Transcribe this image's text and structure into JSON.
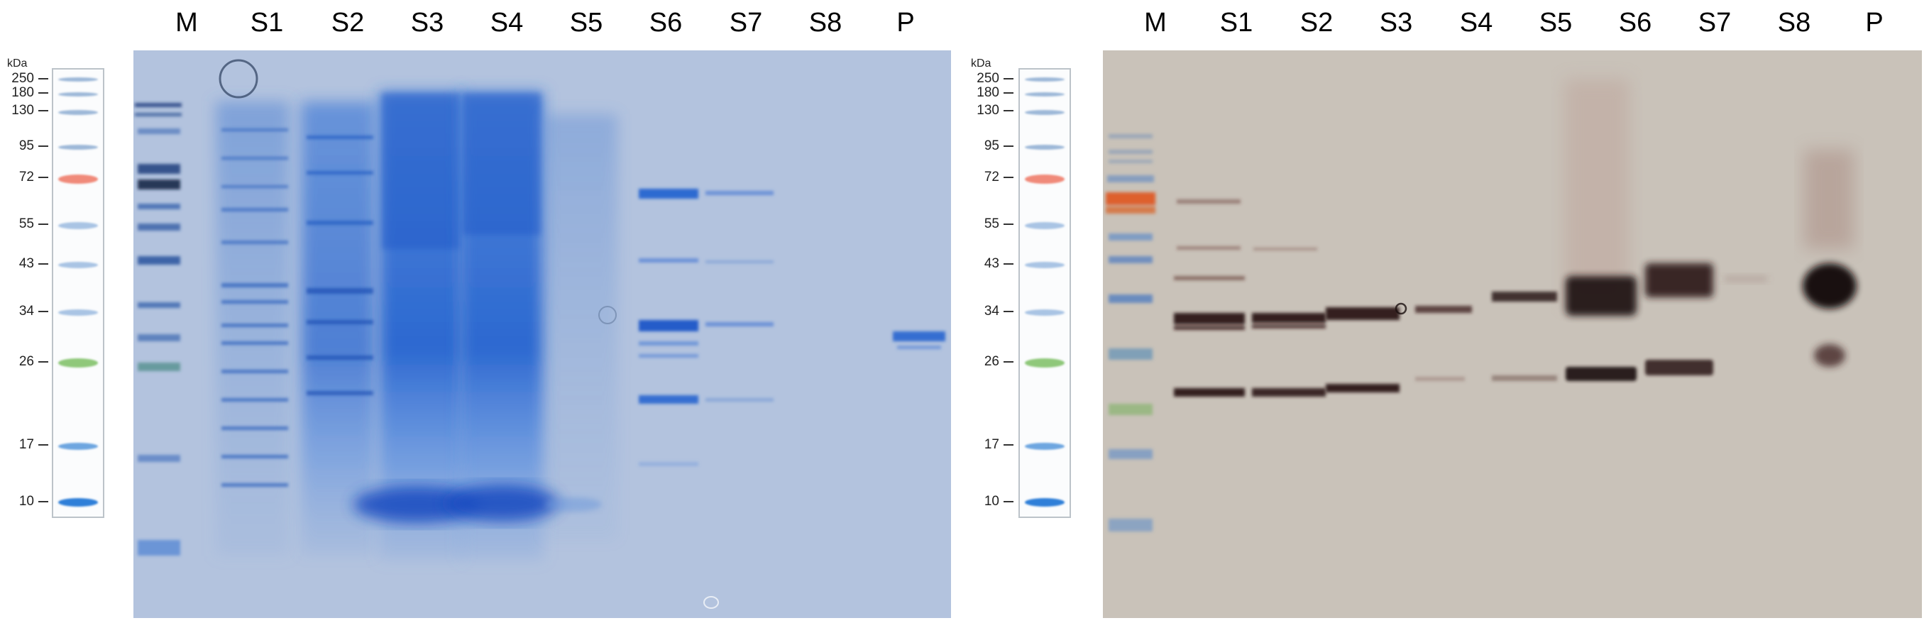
{
  "left_panel": {
    "unit_label": "kDa",
    "ladder_marks": [
      "250",
      "180",
      "130",
      "95",
      "72",
      "55",
      "43",
      "34",
      "26",
      "17",
      "10"
    ],
    "lane_labels": [
      "M",
      "S1",
      "S2",
      "S3",
      "S4",
      "S5",
      "S6",
      "S7",
      "S8",
      "P"
    ],
    "gel_stain": "coomassie",
    "colors": {
      "gel_background": "#b3c3de",
      "band": "#1a56c8"
    }
  },
  "right_panel": {
    "unit_label": "kDa",
    "ladder_marks": [
      "250",
      "180",
      "130",
      "95",
      "72",
      "55",
      "43",
      "34",
      "26",
      "17",
      "10"
    ],
    "lane_labels": [
      "M",
      "S1",
      "S2",
      "S3",
      "S4",
      "S5",
      "S6",
      "S7",
      "S8",
      "P"
    ],
    "blot_type": "western",
    "colors": {
      "blot_background": "#c9c2b9",
      "band": "#2b1414"
    }
  }
}
